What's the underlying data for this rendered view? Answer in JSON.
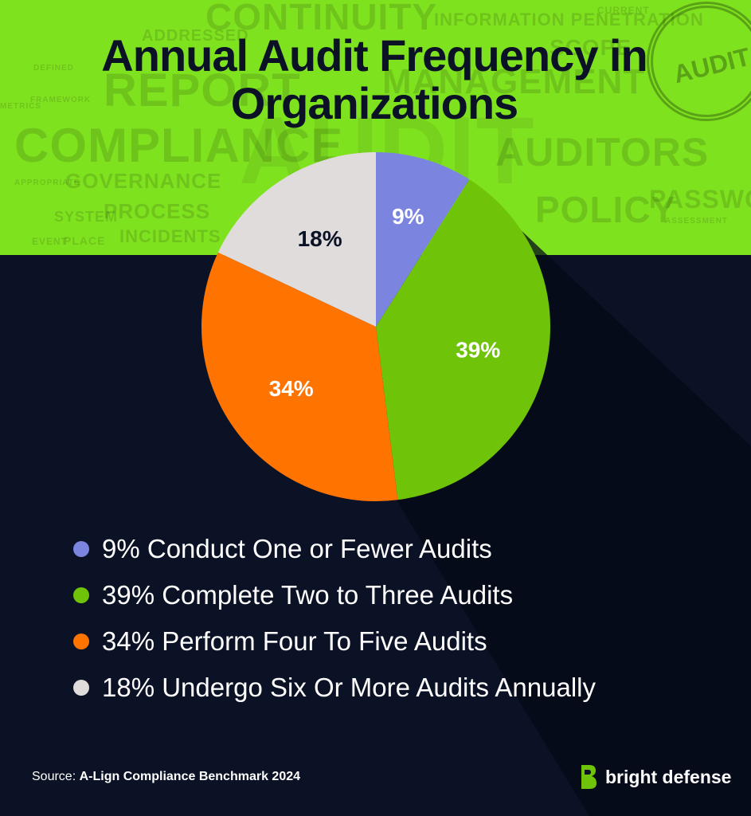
{
  "title": "Annual Audit Frequency in Organizations",
  "background_words": [
    "CONTINUITY",
    "ADDRESSED",
    "INFORMATION PENETRATION",
    "REPORT",
    "MANAGEMENT",
    "COMPLIANCE",
    "AUDITORS",
    "GOVERNANCE",
    "PROCESS",
    "POLICY",
    "PASSWORD",
    "SYSTEM",
    "INCIDENTS",
    "PLACE",
    "APPROPRIATE",
    "METRICS",
    "DEFINED",
    "FRAMEWORK",
    "EVENT",
    "ASSESSMENT",
    "SCOPE",
    "CURRENT",
    "AUDIT"
  ],
  "stamp_text": "AUDIT",
  "colors": {
    "accent_green": "#7fe21f",
    "background": "#0b1226",
    "slice_blue": "#7b85e0",
    "slice_green": "#6fc40a",
    "slice_orange": "#ff7300",
    "slice_gray": "#e0dcdc"
  },
  "chart_data": {
    "type": "pie",
    "title": "Annual Audit Frequency in Organizations",
    "slices": [
      {
        "label": "9%",
        "value": 9,
        "color": "#7b85e0",
        "label_color": "#ffffff"
      },
      {
        "label": "39%",
        "value": 39,
        "color": "#6fc40a",
        "label_color": "#ffffff"
      },
      {
        "label": "34%",
        "value": 34,
        "color": "#ff7300",
        "label_color": "#ffffff"
      },
      {
        "label": "18%",
        "value": 18,
        "color": "#e0dcdc",
        "label_color": "#0b1226"
      }
    ],
    "start": "12 o'clock",
    "direction": "clockwise"
  },
  "legend": [
    {
      "text": "9% Conduct One or Fewer Audits",
      "color": "#7b85e0"
    },
    {
      "text": "39% Complete Two to Three Audits",
      "color": "#6fc40a"
    },
    {
      "text": "34% Perform Four To Five Audits",
      "color": "#ff7300"
    },
    {
      "text": "18% Undergo Six Or More Audits Annually",
      "color": "#e0dcdc"
    }
  ],
  "source": {
    "prefix": "Source: ",
    "name": "A-Lign Compliance Benchmark 2024"
  },
  "brand": {
    "name": "bright defense",
    "icon": "bright-defense-logo-icon"
  }
}
